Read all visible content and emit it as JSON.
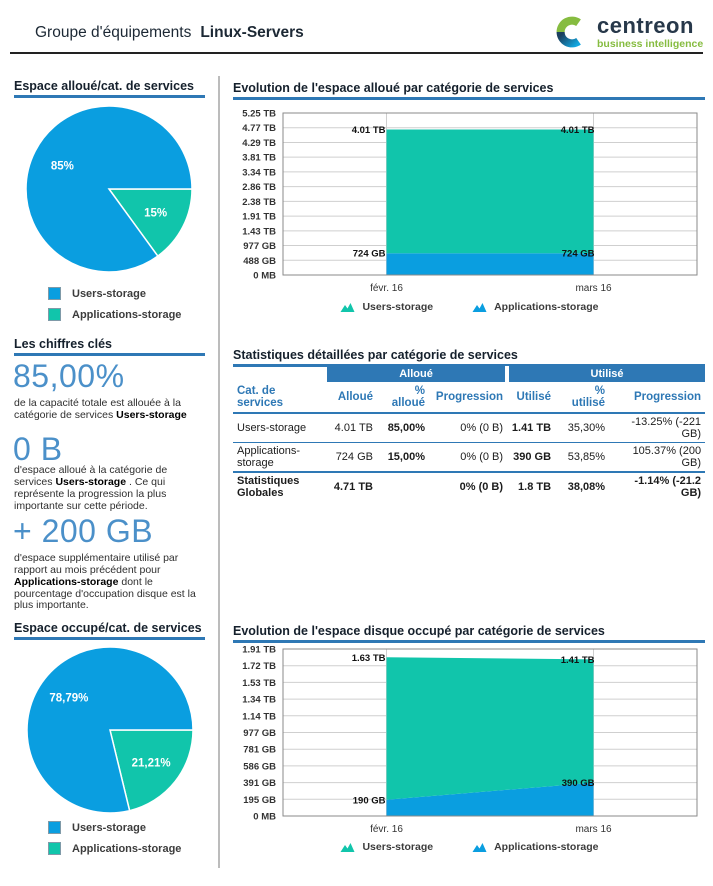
{
  "colors": {
    "blue": "#0a9ee0",
    "teal": "#11c5ab",
    "steel": "#2e78b5",
    "big_number": "#4b90c9",
    "logo_navy": "#27384a",
    "logo_green": "#86bc40"
  },
  "header": {
    "title_prefix": "Groupe d'équipements",
    "title_name": "Linux-Servers",
    "logo": {
      "brand": "centreon",
      "tagline": "business intelligence"
    }
  },
  "key_figures": {
    "title": "Les chiffres clés",
    "items": [
      {
        "value": "85,00%",
        "pre": "de la capacité totale est allouée à la catégorie de services ",
        "em": "Users-storage",
        "post": ""
      },
      {
        "value": "0 B",
        "pre": "d'espace alloué à la catégorie de services ",
        "em": "Users-storage",
        "post": " . Ce qui représente la progression la plus importante sur cette période."
      },
      {
        "value": "+ 200 GB",
        "pre": "d'espace supplémentaire utilisé par rapport au mois précédent pour ",
        "em": "Applications-storage",
        "post": " dont le pourcentage d'occupation disque est la plus importante."
      }
    ]
  },
  "table": {
    "title": "Statistiques détaillées par catégorie de services",
    "group_headers": [
      "Alloué",
      "Utilisé"
    ],
    "columns": [
      "Cat. de services",
      "Alloué",
      "% alloué",
      "Progression",
      "Utilisé",
      "% utilisé",
      "Progression"
    ],
    "rows": [
      [
        "Users-storage",
        "4.01 TB",
        "85,00%",
        "0% (0 B)",
        "1.41 TB",
        "35,30%",
        "-13.25% (-221 GB)"
      ],
      [
        "Applications-storage",
        "724 GB",
        "15,00%",
        "0% (0 B)",
        "390 GB",
        "53,85%",
        "105.37% (200 GB)"
      ],
      [
        "Statistiques Globales",
        "4.71 TB",
        "",
        "0% (0 B)",
        "1.8 TB",
        "38,08%",
        "-1.14% (-21.2 GB)"
      ]
    ]
  },
  "chart_data": [
    {
      "type": "pie",
      "title": "Espace alloué/cat. de services",
      "slices": [
        {
          "name": "Applications-storage",
          "pct": 15,
          "label": "15%",
          "color": "teal"
        },
        {
          "name": "Users-storage",
          "pct": 85,
          "label": "85%",
          "color": "blue"
        }
      ],
      "legend": [
        {
          "label": "Users-storage",
          "color": "blue"
        },
        {
          "label": "Applications-storage",
          "color": "teal"
        }
      ]
    },
    {
      "type": "area",
      "title": "Evolution de l'espace alloué par catégorie de services",
      "x_categories": [
        "févr. 16",
        "mars 16"
      ],
      "y_ticks": [
        "5.25 TB",
        "4.77 TB",
        "4.29 TB",
        "3.81 TB",
        "3.34 TB",
        "2.86 TB",
        "2.38 TB",
        "1.91 TB",
        "1.43 TB",
        "977 GB",
        "488 GB",
        "0 MB"
      ],
      "y_max_gb": 5376,
      "stacked": true,
      "grid": true,
      "series": [
        {
          "name": "Applications-storage",
          "color": "blue",
          "values_gb": [
            724,
            724
          ],
          "point_labels": [
            "724 GB",
            "724 GB"
          ]
        },
        {
          "name": "Users-storage",
          "color": "teal",
          "values_gb": [
            4106,
            4106
          ],
          "point_labels": [
            "4.01 TB",
            "4.01 TB"
          ]
        }
      ],
      "legend": [
        {
          "label": "Users-storage",
          "color": "teal"
        },
        {
          "label": "Applications-storage",
          "color": "blue"
        }
      ]
    },
    {
      "type": "pie",
      "title": "Espace occupé/cat. de services",
      "slices": [
        {
          "name": "Applications-storage",
          "pct": 21.21,
          "label": "21,21%",
          "color": "teal"
        },
        {
          "name": "Users-storage",
          "pct": 78.79,
          "label": "78,79%",
          "color": "blue"
        }
      ],
      "legend": [
        {
          "label": "Users-storage",
          "color": "blue"
        },
        {
          "label": "Applications-storage",
          "color": "teal"
        }
      ]
    },
    {
      "type": "area",
      "title": "Evolution de l'espace disque occupé par catégorie de services",
      "x_categories": [
        "févr. 16",
        "mars 16"
      ],
      "y_ticks": [
        "1.91 TB",
        "1.72 TB",
        "1.53 TB",
        "1.34 TB",
        "1.14 TB",
        "977 GB",
        "781 GB",
        "586 GB",
        "391 GB",
        "195 GB",
        "0 MB"
      ],
      "y_max_gb": 1956,
      "stacked": true,
      "grid": true,
      "series": [
        {
          "name": "Applications-storage",
          "color": "blue",
          "values_gb": [
            190,
            390
          ],
          "point_labels": [
            "190 GB",
            "390 GB"
          ]
        },
        {
          "name": "Users-storage",
          "color": "teal",
          "values_gb": [
            1669,
            1444
          ],
          "point_labels": [
            "1.63 TB",
            "1.41 TB"
          ]
        }
      ],
      "legend": [
        {
          "label": "Users-storage",
          "color": "teal"
        },
        {
          "label": "Applications-storage",
          "color": "blue"
        }
      ]
    }
  ]
}
